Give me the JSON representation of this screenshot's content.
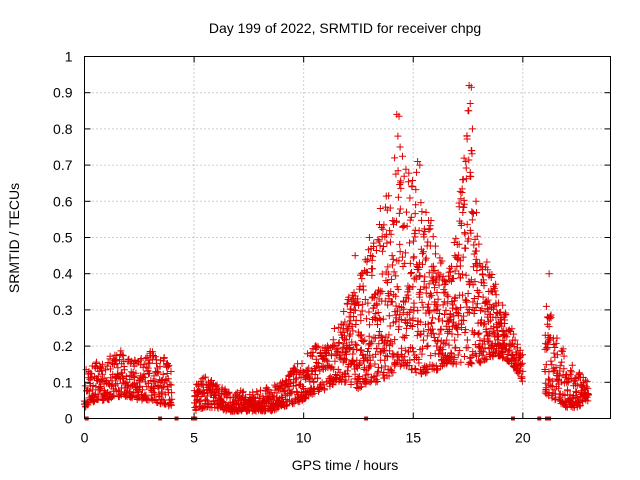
{
  "chart_data": {
    "type": "scatter",
    "title": "Day 199 of 2022, SRMTID for receiver chpg",
    "xlabel": "GPS time / hours",
    "ylabel": "SRMTID / TECUs",
    "xlim": [
      0,
      24
    ],
    "ylim": [
      0,
      1
    ],
    "x_ticks": [
      0,
      5,
      10,
      15,
      20
    ],
    "x_tick_labels": [
      "0",
      "5",
      "10",
      "15",
      "20"
    ],
    "y_ticks": [
      0,
      0.1,
      0.2,
      0.3,
      0.4,
      0.5,
      0.6,
      0.7,
      0.8,
      0.9,
      1
    ],
    "y_tick_labels": [
      "0",
      "0.1",
      "0.2",
      "0.3",
      "0.4",
      "0.5",
      "0.6",
      "0.7",
      "0.8",
      "0.9",
      "1"
    ],
    "grid": true,
    "series": [
      {
        "name": "SRMTID",
        "marker": "plus",
        "color": "#e00000",
        "envelope_x": [
          0,
          0.5,
          1,
          1.5,
          2,
          2.5,
          3,
          3.5,
          4,
          4.5,
          5,
          5.5,
          6,
          6.5,
          7,
          7.5,
          8,
          8.5,
          9,
          9.5,
          10,
          10.5,
          11,
          11.5,
          12,
          12.5,
          13,
          13.5,
          14,
          14.5,
          15,
          15.5,
          16,
          16.5,
          17,
          17.5,
          18,
          18.5,
          19,
          19.5,
          20,
          20.5,
          21,
          21.5,
          22,
          22.5,
          23
        ],
        "envelope_lo": [
          0.03,
          0.05,
          0.05,
          0.06,
          0.06,
          0.05,
          0.05,
          0.04,
          0.03,
          null,
          0.02,
          0.03,
          0.03,
          0.02,
          0.02,
          0.02,
          0.02,
          0.02,
          0.03,
          0.04,
          0.05,
          0.07,
          0.08,
          0.1,
          0.1,
          0.08,
          0.1,
          0.1,
          0.12,
          0.15,
          0.13,
          0.12,
          0.13,
          0.15,
          0.15,
          0.15,
          0.15,
          0.17,
          0.17,
          0.15,
          0.1,
          null,
          0.07,
          0.05,
          0.03,
          0.03,
          0.05
        ],
        "envelope_hi": [
          0.15,
          0.16,
          0.17,
          0.19,
          0.18,
          0.16,
          0.19,
          0.19,
          0.13,
          null,
          0.09,
          0.12,
          0.11,
          0.08,
          0.08,
          0.07,
          0.08,
          0.09,
          0.1,
          0.14,
          0.17,
          0.2,
          0.22,
          0.26,
          0.33,
          0.38,
          0.48,
          0.58,
          0.65,
          0.74,
          0.68,
          0.6,
          0.52,
          0.38,
          0.55,
          0.88,
          0.5,
          0.42,
          0.33,
          0.25,
          0.18,
          null,
          0.35,
          0.25,
          0.17,
          0.14,
          0.1
        ],
        "outliers": [
          {
            "x": 14.25,
            "y": 0.84
          },
          {
            "x": 14.35,
            "y": 0.835
          },
          {
            "x": 14.3,
            "y": 0.78
          },
          {
            "x": 14.4,
            "y": 0.75
          },
          {
            "x": 14.15,
            "y": 0.72
          },
          {
            "x": 15.2,
            "y": 0.71
          },
          {
            "x": 15.3,
            "y": 0.7
          },
          {
            "x": 15.15,
            "y": 0.68
          },
          {
            "x": 17.55,
            "y": 0.92
          },
          {
            "x": 17.65,
            "y": 0.915
          },
          {
            "x": 17.6,
            "y": 0.87
          },
          {
            "x": 17.5,
            "y": 0.85
          },
          {
            "x": 17.7,
            "y": 0.8
          },
          {
            "x": 17.45,
            "y": 0.78
          },
          {
            "x": 17.6,
            "y": 0.68
          },
          {
            "x": 12.35,
            "y": 0.45
          },
          {
            "x": 13.0,
            "y": 0.5
          },
          {
            "x": 13.5,
            "y": 0.58
          },
          {
            "x": 16.9,
            "y": 0.45
          },
          {
            "x": 21.2,
            "y": 0.4
          }
        ],
        "zero_values_x": [
          0.1,
          3.45,
          4.2,
          4.95,
          5.05,
          12.85,
          19.55,
          20.75,
          21.1,
          21.2
        ]
      }
    ]
  }
}
